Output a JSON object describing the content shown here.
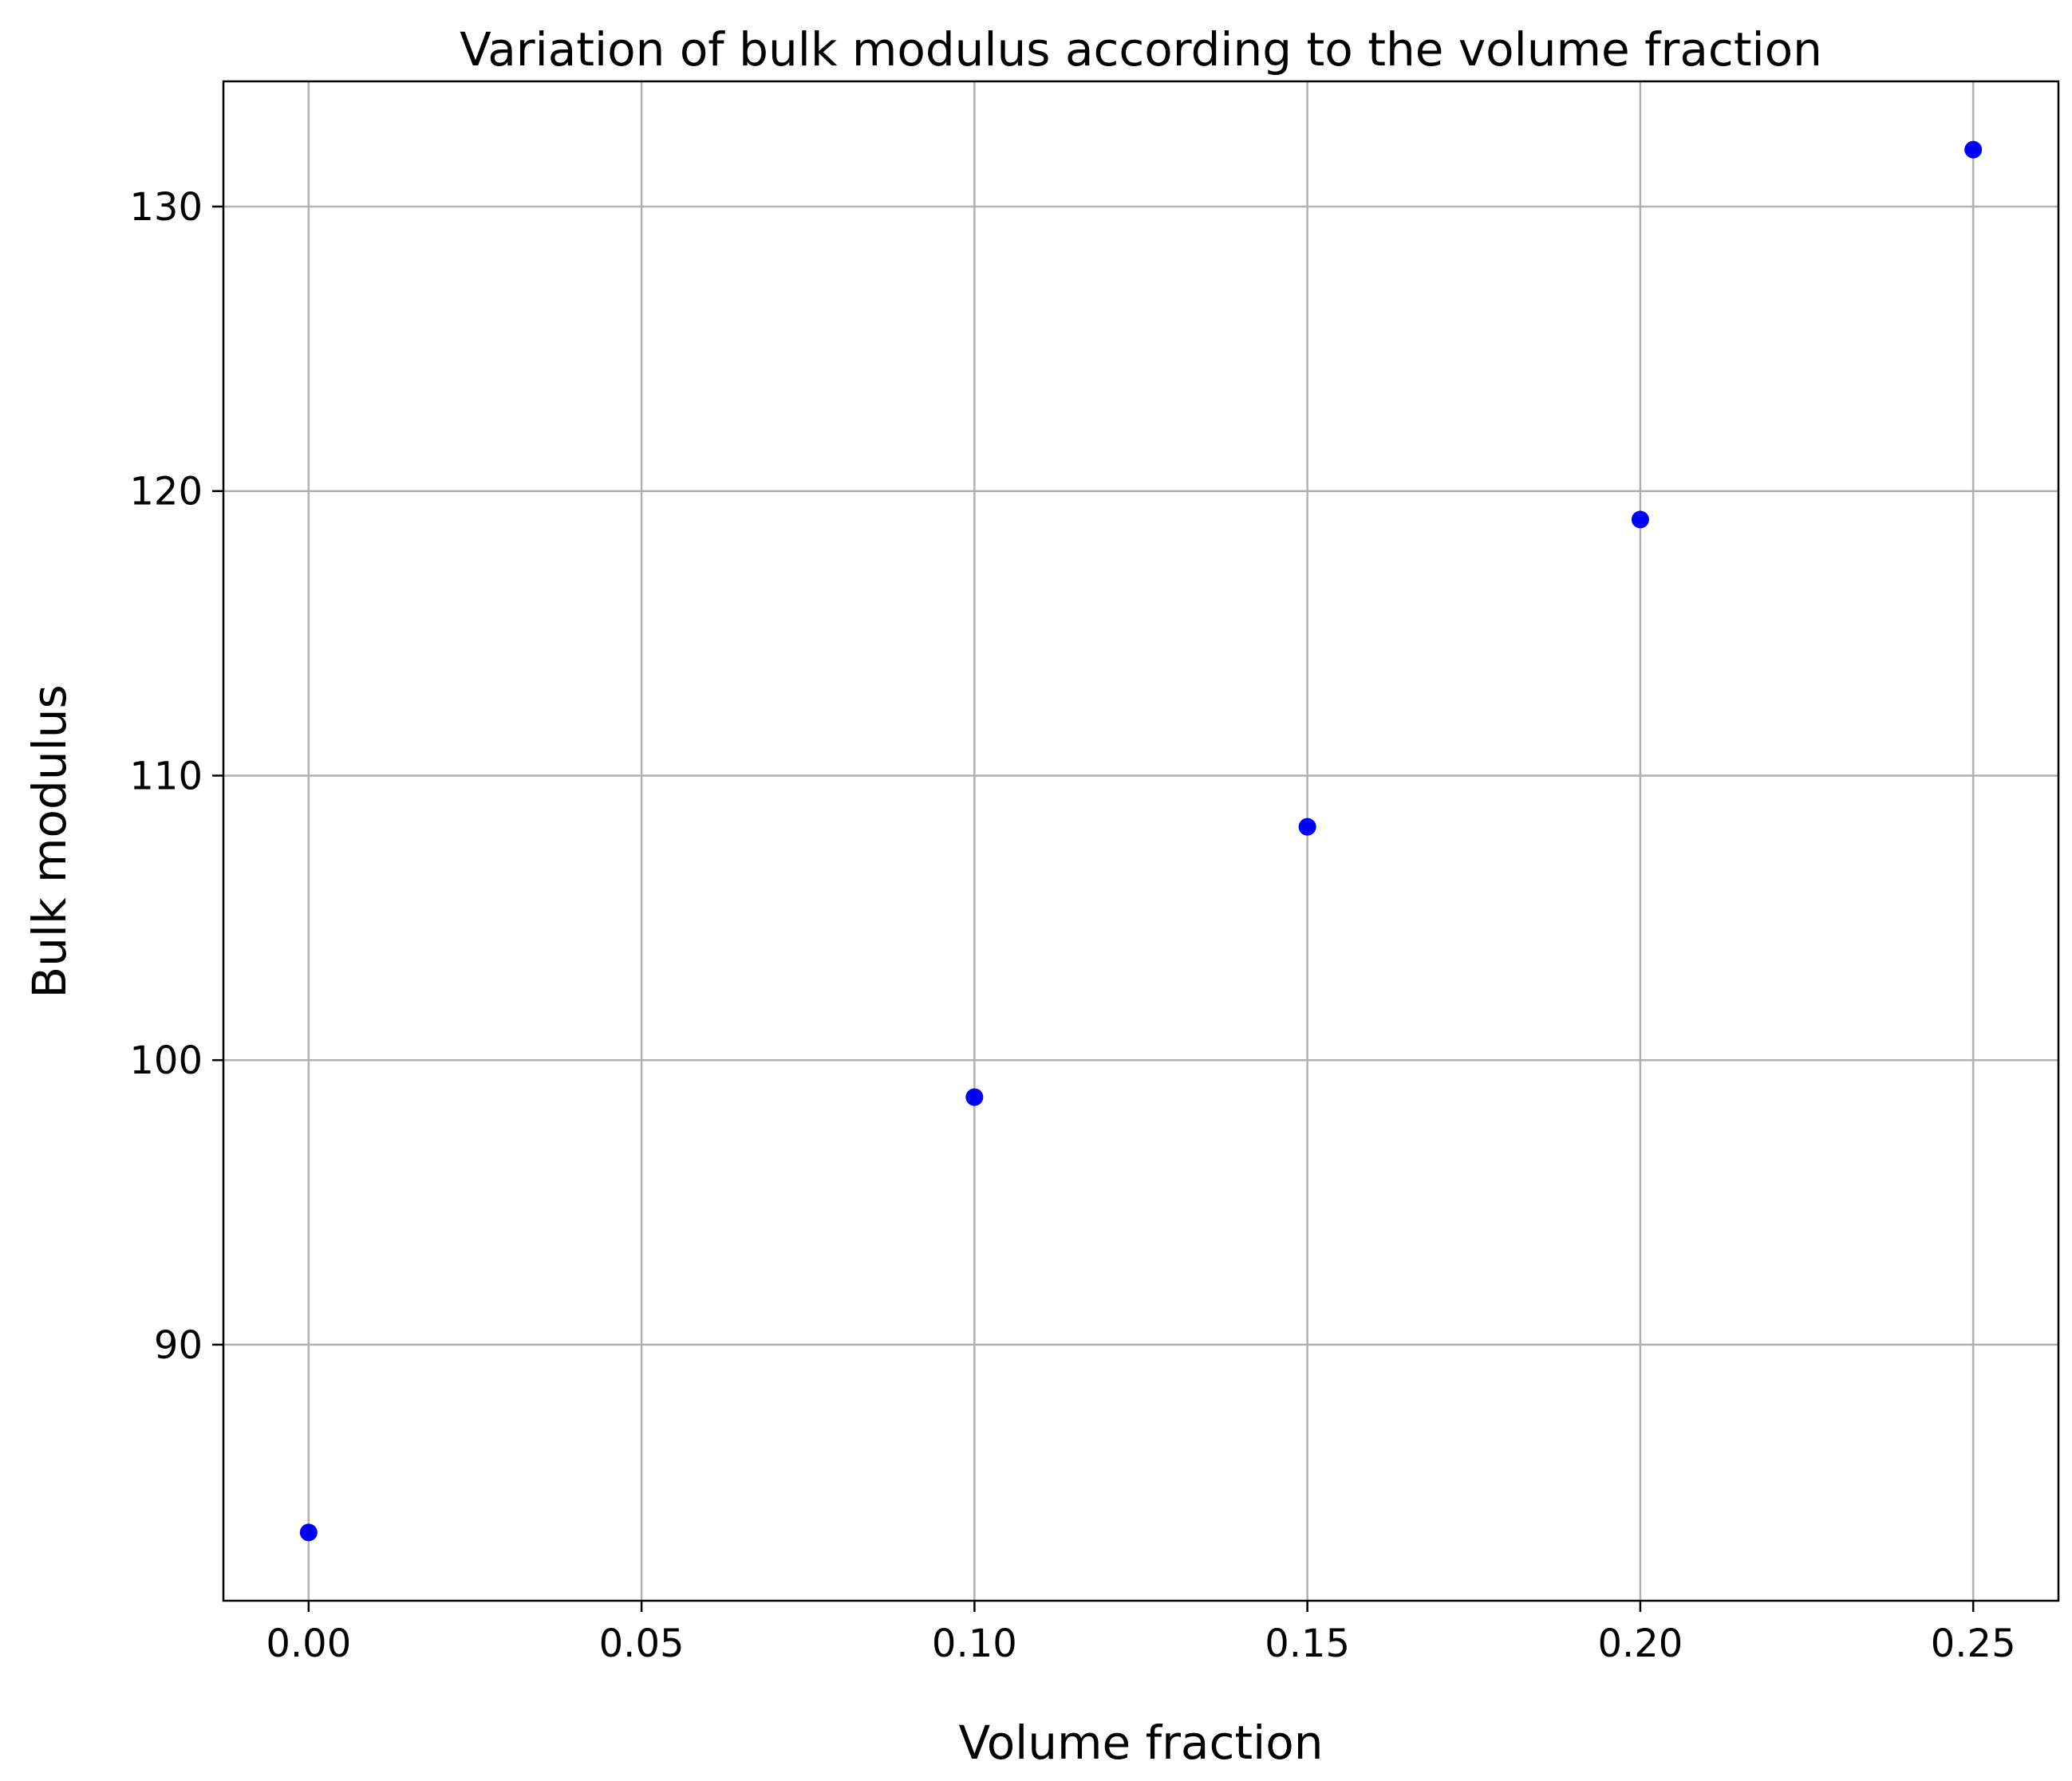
{
  "chart_data": {
    "type": "scatter",
    "title": "Variation of bulk modulus according to the volume fraction",
    "xlabel": "Volume fraction",
    "ylabel": "Bulk modulus",
    "xlim": [
      -0.0128,
      0.2628
    ],
    "ylim": [
      81.0,
      134.4
    ],
    "x_ticks": [
      0.0,
      0.05,
      0.1,
      0.15,
      0.2,
      0.25
    ],
    "x_tick_labels": [
      "0.00",
      "0.05",
      "0.10",
      "0.15",
      "0.20",
      "0.25"
    ],
    "y_ticks": [
      90,
      100,
      110,
      120,
      130
    ],
    "y_tick_labels": [
      "90",
      "100",
      "110",
      "120",
      "130"
    ],
    "grid": true,
    "marker_color": "#0000ff",
    "points": [
      {
        "x": 0.0,
        "y": 83.4
      },
      {
        "x": 0.1,
        "y": 98.7
      },
      {
        "x": 0.15,
        "y": 108.2
      },
      {
        "x": 0.2,
        "y": 119.0
      },
      {
        "x": 0.25,
        "y": 132.0
      }
    ]
  }
}
